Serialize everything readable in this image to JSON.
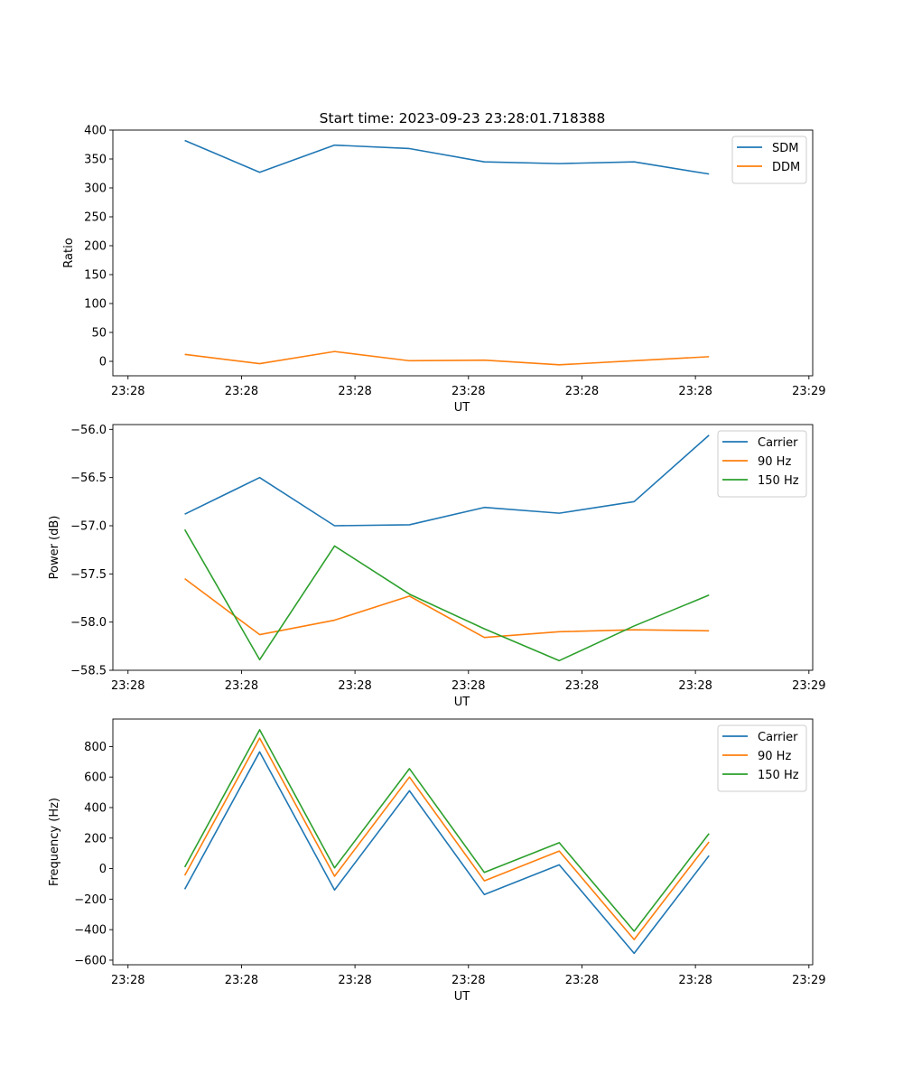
{
  "chart_data": {
    "title": "Start time: 2023-09-23 23:28:01.718388",
    "x_tick_labels": [
      "23:28",
      "23:28",
      "23:28",
      "23:28",
      "23:28",
      "23:28",
      "23:28"
    ],
    "x_end_tick_label": "23:29",
    "x_range": [
      -0.5,
      8.75
    ],
    "x_ticks": [
      -0.3,
      1.2,
      2.7,
      4.2,
      5.7,
      7.2,
      8.7
    ],
    "x": [
      0.45,
      1.44,
      2.43,
      3.42,
      4.41,
      5.4,
      6.39,
      7.38
    ],
    "panels": [
      {
        "type": "line",
        "ylabel": "Ratio",
        "xlabel": "UT",
        "ylim": [
          -25,
          400
        ],
        "yticks": [
          0,
          50,
          100,
          150,
          200,
          250,
          300,
          350,
          400
        ],
        "ytick_labels": [
          "0",
          "50",
          "100",
          "150",
          "200",
          "250",
          "300",
          "350",
          "400"
        ],
        "legend_position": "top-right",
        "series": [
          {
            "name": "SDM",
            "color": "#1f77b4",
            "values": [
              382,
              327,
              374,
              368,
              345,
              342,
              345,
              324
            ]
          },
          {
            "name": "DDM",
            "color": "#ff7f0e",
            "values": [
              12,
              -4,
              17,
              1,
              2,
              -6,
              1,
              8
            ]
          }
        ]
      },
      {
        "type": "line",
        "ylabel": "Power (dB)",
        "xlabel": "UT",
        "ylim": [
          -58.5,
          -55.95
        ],
        "yticks": [
          -58.5,
          -58.0,
          -57.5,
          -57.0,
          -56.5,
          -56.0
        ],
        "ytick_labels": [
          "−58.5",
          "−58.0",
          "−57.5",
          "−57.0",
          "−56.5",
          "−56.0"
        ],
        "legend_position": "top-right",
        "series": [
          {
            "name": "Carrier",
            "color": "#1f77b4",
            "values": [
              -56.88,
              -56.5,
              -57.0,
              -56.99,
              -56.81,
              -56.87,
              -56.75,
              -56.06
            ]
          },
          {
            "name": "90 Hz",
            "color": "#ff7f0e",
            "values": [
              -57.55,
              -58.13,
              -57.98,
              -57.73,
              -58.16,
              -58.1,
              -58.08,
              -58.09
            ]
          },
          {
            "name": "150 Hz",
            "color": "#2ca02c",
            "values": [
              -57.04,
              -58.39,
              -57.21,
              -57.71,
              -58.07,
              -58.4,
              -58.04,
              -57.72
            ]
          }
        ]
      },
      {
        "type": "line",
        "ylabel": "Frequency (Hz)",
        "xlabel": "UT",
        "ylim": [
          -630,
          980
        ],
        "yticks": [
          -600,
          -400,
          -200,
          0,
          200,
          400,
          600,
          800
        ],
        "ytick_labels": [
          "−600",
          "−400",
          "−200",
          "0",
          "200",
          "400",
          "600",
          "800"
        ],
        "legend_position": "top-right",
        "series": [
          {
            "name": "Carrier",
            "color": "#1f77b4",
            "values": [
              -135,
              765,
              -140,
              510,
              -170,
              25,
              -555,
              85
            ]
          },
          {
            "name": "90 Hz",
            "color": "#ff7f0e",
            "values": [
              -45,
              855,
              -50,
              600,
              -80,
              115,
              -465,
              175
            ]
          },
          {
            "name": "150 Hz",
            "color": "#2ca02c",
            "values": [
              10,
              910,
              5,
              655,
              -25,
              170,
              -410,
              230
            ]
          }
        ]
      }
    ]
  }
}
